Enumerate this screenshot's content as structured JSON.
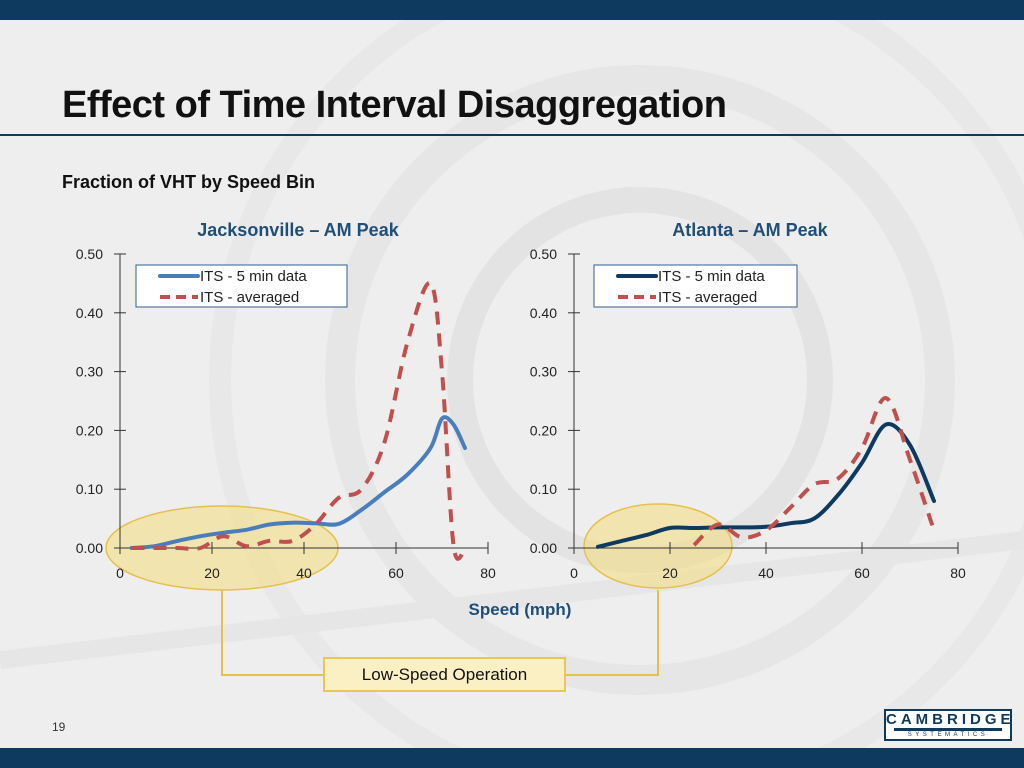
{
  "slide": {
    "title": "Effect of Time Interval Disaggregation",
    "subtitle": "Fraction of VHT by Speed Bin",
    "page_number": "19",
    "callout": "Low-Speed Operation",
    "logo": {
      "main": "CAMBRIDGE",
      "sub": "SYSTEMATICS"
    }
  },
  "colors": {
    "bar": "#0d3a5e",
    "jax_its": "#4a7ebb",
    "atl_its": "#0d3a5e",
    "averaged": "#c0504d",
    "highlight_fill": "#f6dc7c",
    "highlight_stroke": "#e4c04f",
    "axis_title": "#1f4e79"
  },
  "chart_data": [
    {
      "type": "line",
      "title": "Jacksonville – AM Peak",
      "xlabel": "",
      "ylabel": "",
      "xlim": [
        0,
        80
      ],
      "ylim": [
        0,
        0.5
      ],
      "xticks": [
        "0",
        "20",
        "40",
        "60",
        "80"
      ],
      "yticks": [
        "0.00",
        "0.10",
        "0.20",
        "0.30",
        "0.40",
        "0.50"
      ],
      "legend": "top-left",
      "series": [
        {
          "name": "ITS - 5 min data",
          "style": "solid",
          "x": [
            2.5,
            7.5,
            12.5,
            17.5,
            22.5,
            27.5,
            32.5,
            37.5,
            42.5,
            47.5,
            52.5,
            57.5,
            62.5,
            67.5,
            70,
            72.5,
            75
          ],
          "y": [
            0.0,
            0.003,
            0.012,
            0.02,
            0.026,
            0.031,
            0.04,
            0.043,
            0.042,
            0.041,
            0.065,
            0.095,
            0.125,
            0.17,
            0.22,
            0.21,
            0.17
          ]
        },
        {
          "name": "ITS - averaged",
          "style": "dashed",
          "x": [
            2.5,
            7.5,
            12.5,
            17.5,
            22.5,
            27.5,
            32.5,
            37.5,
            42.5,
            47.5,
            52.5,
            57.5,
            62.5,
            67.5,
            70,
            72.5,
            75
          ],
          "y": [
            0.0,
            0.0,
            0.0,
            0.0,
            0.02,
            0.003,
            0.012,
            0.012,
            0.04,
            0.085,
            0.1,
            0.18,
            0.35,
            0.45,
            0.3,
            0.005,
            0.0
          ]
        }
      ]
    },
    {
      "type": "line",
      "title": "Atlanta – AM Peak",
      "xlabel": "Speed (mph)",
      "ylabel": "",
      "xlim": [
        0,
        80
      ],
      "ylim": [
        0,
        0.5
      ],
      "xticks": [
        "0",
        "20",
        "40",
        "60",
        "80"
      ],
      "yticks": [
        "0.00",
        "0.10",
        "0.20",
        "0.30",
        "0.40",
        "0.50"
      ],
      "legend": "top-left",
      "series": [
        {
          "name": "ITS - 5 min data",
          "style": "solid",
          "x": [
            5,
            10,
            15,
            20,
            25,
            30,
            35,
            40,
            45,
            50,
            55,
            60,
            65,
            70,
            75
          ],
          "y": [
            0.002,
            0.012,
            0.022,
            0.034,
            0.034,
            0.035,
            0.035,
            0.036,
            0.042,
            0.05,
            0.09,
            0.145,
            0.21,
            0.175,
            0.08
          ]
        },
        {
          "name": "ITS - averaged",
          "style": "dashed",
          "x": [
            25,
            30,
            35,
            40,
            45,
            50,
            55,
            60,
            65,
            70,
            75
          ],
          "y": [
            0.005,
            0.04,
            0.018,
            0.03,
            0.068,
            0.108,
            0.118,
            0.17,
            0.255,
            0.15,
            0.03
          ]
        }
      ]
    }
  ]
}
